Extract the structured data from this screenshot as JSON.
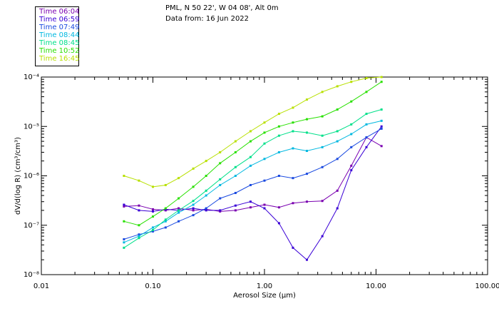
{
  "header": {
    "station": "PML, N 50 22', W 04 08', Alt 0m",
    "date": "Data from: 16 Jun 2022"
  },
  "chart_data": {
    "type": "line",
    "xscale": "log",
    "yscale": "log",
    "xlabel": "Aerosol Size (μm)",
    "ylabel": "dV/d(log R) (cm³/cm³)",
    "xlim": [
      0.01,
      100
    ],
    "ylim": [
      1e-08,
      0.0001
    ],
    "xticks": [
      "0.01",
      "0.10",
      "1.00",
      "10.00",
      "100.00"
    ],
    "yticks": [
      "10⁻⁸",
      "10⁻⁷",
      "10⁻⁶",
      "10⁻⁵",
      "10⁻⁴"
    ],
    "x": [
      0.055,
      0.075,
      0.1,
      0.13,
      0.17,
      0.23,
      0.3,
      0.4,
      0.55,
      0.75,
      1.0,
      1.35,
      1.8,
      2.4,
      3.3,
      4.5,
      6.0,
      8.2,
      11.2
    ],
    "legend_title": "",
    "series": [
      {
        "name": "Time 06:04",
        "color": "#7a00b0",
        "values": [
          2.4e-07,
          2.5e-07,
          2.1e-07,
          2e-07,
          2.2e-07,
          2e-07,
          2.1e-07,
          1.9e-07,
          2e-07,
          2.3e-07,
          2.6e-07,
          2.3e-07,
          2.8e-07,
          3e-07,
          3.1e-07,
          5e-07,
          1.6e-06,
          6e-06,
          4e-06
        ]
      },
      {
        "name": "Time 06:59",
        "color": "#3a00d6",
        "values": [
          2.6e-07,
          2e-07,
          1.9e-07,
          2.1e-07,
          2e-07,
          2.2e-07,
          2e-07,
          2e-07,
          2.5e-07,
          3e-07,
          2.2e-07,
          1.1e-07,
          3.5e-08,
          2e-08,
          6e-08,
          2.2e-07,
          1.3e-06,
          3.8e-06,
          1e-05
        ]
      },
      {
        "name": "Time 07:49",
        "color": "#1a4ae0",
        "values": [
          5.2e-08,
          6.5e-08,
          7.5e-08,
          9e-08,
          1.2e-07,
          1.6e-07,
          2.2e-07,
          3.5e-07,
          4.5e-07,
          6.5e-07,
          8e-07,
          1e-06,
          9e-07,
          1.1e-06,
          1.5e-06,
          2.2e-06,
          3.8e-06,
          6e-06,
          9e-06
        ]
      },
      {
        "name": "Time 08:44",
        "color": "#00b8e0",
        "values": [
          4.5e-08,
          6e-08,
          9e-08,
          1.2e-07,
          1.8e-07,
          2.6e-07,
          4e-07,
          6.5e-07,
          1e-06,
          1.6e-06,
          2.2e-06,
          3e-06,
          3.6e-06,
          3.2e-06,
          3.8e-06,
          5e-06,
          7e-06,
          1.1e-05,
          1.3e-05
        ]
      },
      {
        "name": "Time 08:45",
        "color": "#00e08a",
        "values": [
          3.5e-08,
          5.5e-08,
          8e-08,
          1.3e-07,
          2e-07,
          3.1e-07,
          5e-07,
          8.5e-07,
          1.5e-06,
          2.4e-06,
          4.5e-06,
          6.5e-06,
          8e-06,
          7.5e-06,
          6.5e-06,
          8e-06,
          1.1e-05,
          1.8e-05,
          2.2e-05
        ]
      },
      {
        "name": "Time 10:52",
        "color": "#28e000",
        "values": [
          1.2e-07,
          1e-07,
          1.5e-07,
          2.2e-07,
          3.5e-07,
          6e-07,
          1e-06,
          1.8e-06,
          3e-06,
          5e-06,
          7.5e-06,
          1e-05,
          1.2e-05,
          1.4e-05,
          1.6e-05,
          2.2e-05,
          3.2e-05,
          5e-05,
          8e-05
        ]
      },
      {
        "name": "Time 16:45",
        "color": "#b8e000",
        "values": [
          1e-06,
          8e-07,
          6e-07,
          6.5e-07,
          9e-07,
          1.4e-06,
          2e-06,
          3e-06,
          5e-06,
          8e-06,
          1.2e-05,
          1.8e-05,
          2.4e-05,
          3.5e-05,
          5e-05,
          6.5e-05,
          8e-05,
          9.5e-05,
          0.0001
        ]
      }
    ]
  }
}
